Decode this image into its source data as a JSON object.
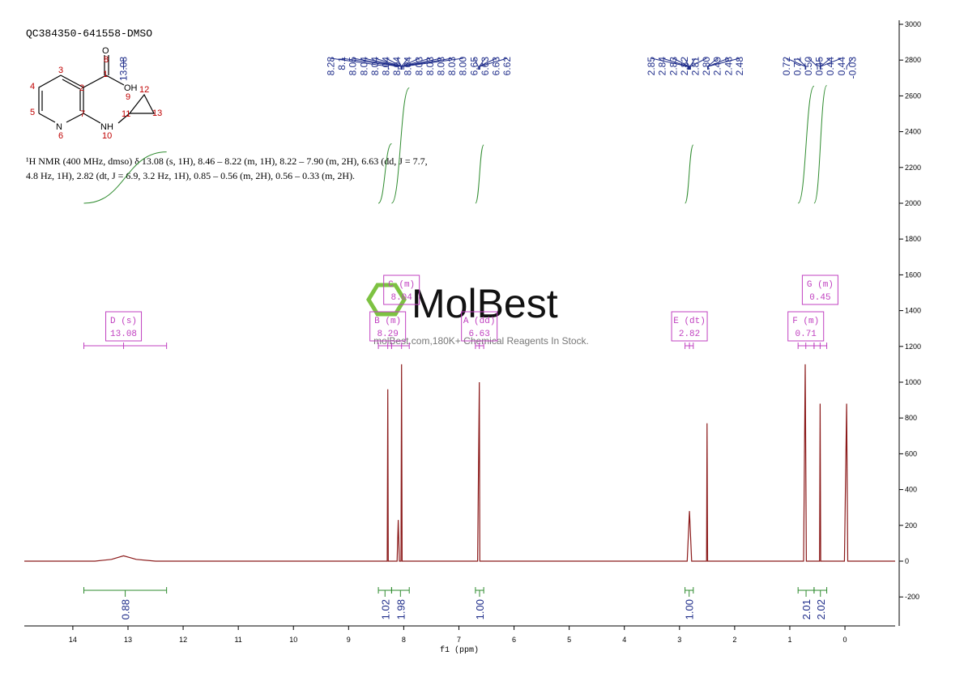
{
  "chart_data": {
    "type": "line",
    "title": "QC384350-641558-DMSO",
    "xlabel": "f1 (ppm)",
    "xlim": [
      14.88,
      -0.91
    ],
    "xticks": [
      14,
      13,
      12,
      11,
      10,
      9,
      8,
      7,
      6,
      5,
      4,
      3,
      2,
      1,
      0
    ],
    "ylim": [
      -362,
      3000
    ],
    "yticks": [
      -200,
      0,
      200,
      400,
      600,
      800,
      1000,
      1200,
      1400,
      1600,
      1800,
      2000,
      2200,
      2400,
      2600,
      2800,
      3000
    ],
    "x": [
      14.88,
      13.6,
      13.3,
      13.08,
      12.85,
      12.5,
      8.4,
      8.3,
      8.29,
      8.28,
      8.12,
      8.1,
      8.08,
      8.05,
      8.04,
      8.03,
      6.66,
      6.63,
      6.62,
      3.2,
      2.86,
      2.82,
      2.78,
      2.51,
      2.5,
      2.49,
      0.75,
      0.72,
      0.7,
      0.46,
      0.45,
      0.44,
      0.01,
      -0.03,
      -0.05,
      -0.91
    ],
    "series": [
      {
        "color": "#8b1a1a",
        "values": [
          0,
          0,
          10,
          30,
          10,
          0,
          0,
          0,
          960,
          0,
          0,
          230,
          0,
          0,
          1100,
          0,
          0,
          1000,
          0,
          0,
          0,
          280,
          0,
          0,
          770,
          0,
          0,
          1100,
          0,
          0,
          880,
          0,
          0,
          880,
          0,
          0
        ]
      }
    ],
    "peak_labels": [
      13.08,
      8.28,
      8.1,
      8.05,
      8.04,
      8.04,
      8.04,
      8.04,
      8.04,
      8.03,
      8.03,
      8.03,
      8.03,
      {
        "value": 8.0,
        "label": "8.00"
      },
      6.65,
      6.63,
      6.63,
      6.62,
      2.85,
      2.84,
      2.83,
      2.82,
      2.81,
      {
        "value": 2.8,
        "label": "2.80"
      },
      2.49,
      2.48,
      2.48,
      0.72,
      0.71,
      {
        "value": 0.5,
        "label": "0.50"
      },
      0.45,
      0.44,
      0.44,
      -0.03
    ],
    "multiplets": [
      {
        "label": "D (s)",
        "shift": 13.08,
        "range": [
          13.8,
          12.3
        ]
      },
      {
        "label": "B (m)",
        "shift": 8.29,
        "range": [
          8.46,
          8.22
        ]
      },
      {
        "label": "C (m)",
        "shift": 8.04,
        "range": [
          8.22,
          7.9
        ]
      },
      {
        "label": "A (dd)",
        "shift": 6.63,
        "range": [
          6.7,
          6.55
        ]
      },
      {
        "label": "E (dt)",
        "shift": 2.82,
        "range": [
          2.9,
          2.75
        ]
      },
      {
        "label": "F (m)",
        "shift": 0.71,
        "range": [
          0.85,
          0.56
        ]
      },
      {
        "label": "G (m)",
        "shift": 0.45,
        "range": [
          0.56,
          0.33
        ]
      }
    ],
    "integrals": [
      {
        "range": [
          13.8,
          12.3
        ],
        "value": 0.88
      },
      {
        "range": [
          8.46,
          8.22
        ],
        "value": 1.02
      },
      {
        "range": [
          8.22,
          7.9
        ],
        "value": 1.98
      },
      {
        "range": [
          6.7,
          6.55
        ],
        "value": 1.0,
        "label": "1.00"
      },
      {
        "range": [
          2.9,
          2.75
        ],
        "value": 1.0,
        "label": "1.00"
      },
      {
        "range": [
          0.85,
          0.56
        ],
        "value": 2.01
      },
      {
        "range": [
          0.56,
          0.33
        ],
        "value": 2.02
      }
    ],
    "description": [
      "¹H NMR (400 MHz, dmso) δ 13.08 (s, 1H), 8.46 – 8.22 (m, 1H), 8.22 – 7.90 (m, 2H), 6.63 (dd, J = 7.7,",
      "4.8 Hz, 1H), 2.82 (dt, J = 6.9, 3.2 Hz, 1H), 0.85 – 0.56 (m, 2H), 0.56 – 0.33 (m, 2H)."
    ],
    "structure": {
      "atoms": [
        "O",
        "OH",
        "N",
        "NH"
      ],
      "numbers": [
        "8",
        "1",
        "9",
        "2",
        "3",
        "4",
        "5",
        "6",
        "7",
        "10",
        "11",
        "12",
        "13"
      ]
    },
    "watermark": {
      "logo": "MolBest",
      "tagline": "molBest.com,180K+ Chemical Reagents In Stock."
    }
  }
}
